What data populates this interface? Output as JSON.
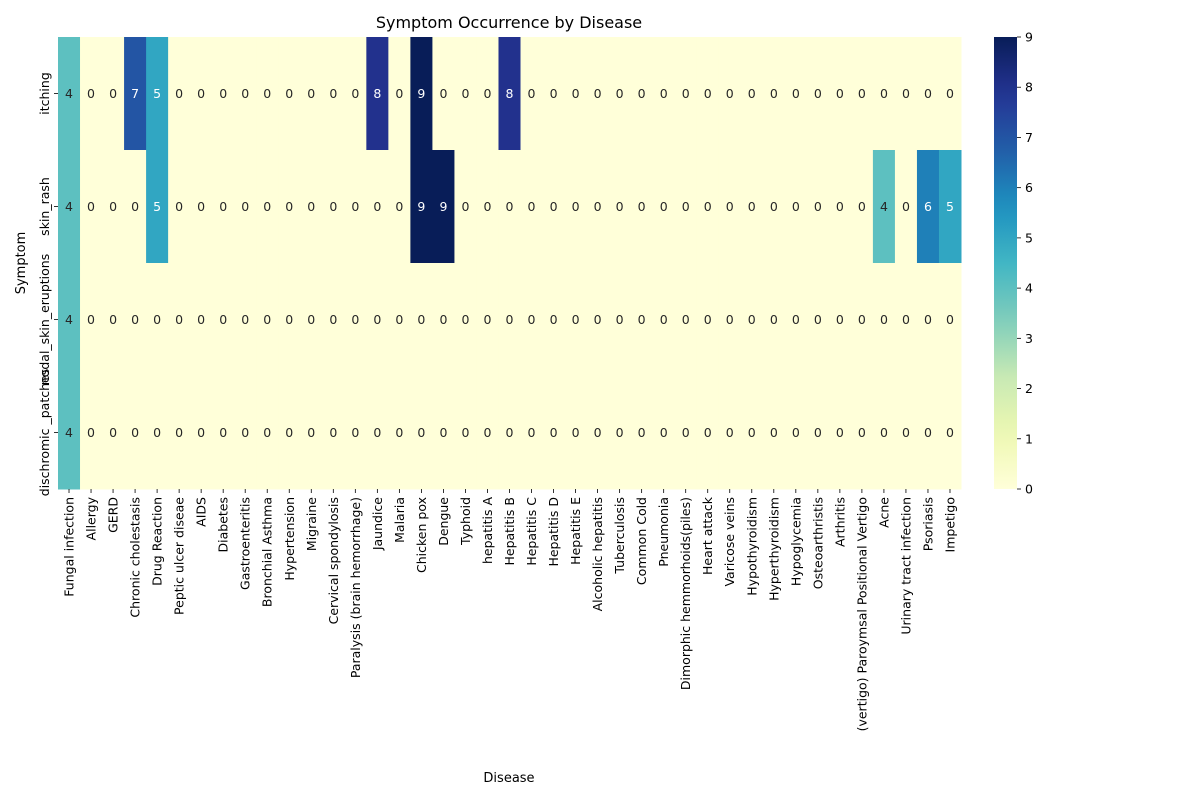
{
  "chart_data": {
    "type": "heatmap",
    "title": "Symptom Occurrence by Disease",
    "xlabel": "Disease",
    "ylabel": "Symptom",
    "rows": [
      "itching",
      "skin_rash",
      "nodal_skin_eruptions",
      "dischromic _patches"
    ],
    "columns": [
      "Fungal infection",
      "Allergy",
      "GERD",
      "Chronic cholestasis",
      "Drug Reaction",
      "Peptic ulcer diseae",
      "AIDS",
      "Diabetes ",
      "Gastroenteritis",
      "Bronchial Asthma",
      "Hypertension ",
      "Migraine",
      "Cervical spondylosis",
      "Paralysis (brain hemorrhage)",
      "Jaundice",
      "Malaria",
      "Chicken pox",
      "Dengue",
      "Typhoid",
      "hepatitis A",
      "Hepatitis B",
      "Hepatitis C",
      "Hepatitis D",
      "Hepatitis E",
      "Alcoholic hepatitis",
      "Tuberculosis",
      "Common Cold",
      "Pneumonia",
      "Dimorphic hemmorhoids(piles)",
      "Heart attack",
      "Varicose veins",
      "Hypothyroidism",
      "Hyperthyroidism",
      "Hypoglycemia",
      "Osteoarthristis",
      "Arthritis",
      "(vertigo) Paroymsal  Positional Vertigo",
      "Acne",
      "Urinary tract infection",
      "Psoriasis",
      "Impetigo"
    ],
    "values": [
      [
        4,
        0,
        0,
        7,
        5,
        0,
        0,
        0,
        0,
        0,
        0,
        0,
        0,
        0,
        8,
        0,
        9,
        0,
        0,
        0,
        8,
        0,
        0,
        0,
        0,
        0,
        0,
        0,
        0,
        0,
        0,
        0,
        0,
        0,
        0,
        0,
        0,
        0,
        0,
        0,
        0
      ],
      [
        4,
        0,
        0,
        0,
        5,
        0,
        0,
        0,
        0,
        0,
        0,
        0,
        0,
        0,
        0,
        0,
        9,
        9,
        0,
        0,
        0,
        0,
        0,
        0,
        0,
        0,
        0,
        0,
        0,
        0,
        0,
        0,
        0,
        0,
        0,
        0,
        0,
        4,
        0,
        6,
        5
      ],
      [
        4,
        0,
        0,
        0,
        0,
        0,
        0,
        0,
        0,
        0,
        0,
        0,
        0,
        0,
        0,
        0,
        0,
        0,
        0,
        0,
        0,
        0,
        0,
        0,
        0,
        0,
        0,
        0,
        0,
        0,
        0,
        0,
        0,
        0,
        0,
        0,
        0,
        0,
        0,
        0,
        0
      ],
      [
        4,
        0,
        0,
        0,
        0,
        0,
        0,
        0,
        0,
        0,
        0,
        0,
        0,
        0,
        0,
        0,
        0,
        0,
        0,
        0,
        0,
        0,
        0,
        0,
        0,
        0,
        0,
        0,
        0,
        0,
        0,
        0,
        0,
        0,
        0,
        0,
        0,
        0,
        0,
        0,
        0
      ]
    ],
    "colorbar": {
      "min": 0,
      "max": 9,
      "ticks": [
        0,
        1,
        2,
        3,
        4,
        5,
        6,
        7,
        8,
        9
      ],
      "colormap": "YlGnBu"
    },
    "annotations": true
  }
}
